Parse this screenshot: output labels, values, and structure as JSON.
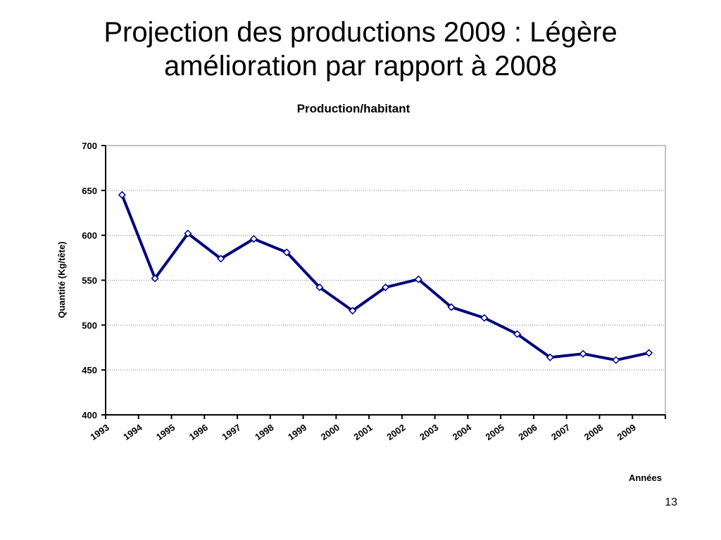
{
  "slide": {
    "title_line1": "Projection des productions 2009 : Légère",
    "title_line2": "amélioration par rapport à 2008",
    "page_number": "13"
  },
  "chart_data": {
    "type": "line",
    "title": "Production/habitant",
    "xlabel": "Années",
    "ylabel": "Quantité (Kg/tête)",
    "categories": [
      "1993",
      "1994",
      "1995",
      "1996",
      "1997",
      "1998",
      "1999",
      "2000",
      "2001",
      "2002",
      "2003",
      "2004",
      "2005",
      "2006",
      "2007",
      "2008",
      "2009"
    ],
    "series": [
      {
        "values": [
          645,
          552,
          602,
          574,
          596,
          581,
          542,
          516,
          542,
          551,
          520,
          508,
          490,
          464,
          468,
          461,
          469
        ],
        "color": "#000080",
        "marker": "diamond",
        "marker_fill": "#ffffff"
      }
    ],
    "ylim": [
      400,
      700
    ],
    "yticks": [
      400,
      450,
      500,
      550,
      600,
      650,
      700
    ],
    "grid": "horizontal-dotted",
    "legend": "none"
  }
}
